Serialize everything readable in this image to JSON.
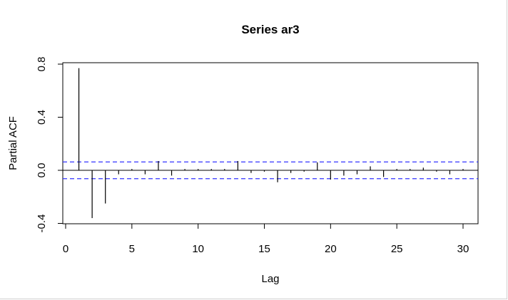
{
  "chart_data": {
    "type": "bar",
    "title": "Series  ar3",
    "xlabel": "Lag",
    "ylabel": "Partial ACF",
    "xlim": [
      0,
      30
    ],
    "ylim": [
      -0.4,
      0.8
    ],
    "xticks": [
      "0",
      "5",
      "10",
      "15",
      "20",
      "25",
      "30"
    ],
    "yticks": [
      "-0.4",
      "0.0",
      "0.4",
      "0.8"
    ],
    "lags": [
      1,
      2,
      3,
      4,
      5,
      6,
      7,
      8,
      9,
      10,
      11,
      12,
      13,
      14,
      15,
      16,
      17,
      18,
      19,
      20,
      21,
      22,
      23,
      24,
      25,
      26,
      27,
      28,
      29,
      30
    ],
    "values": [
      0.77,
      -0.36,
      -0.25,
      -0.03,
      0.01,
      -0.03,
      0.07,
      -0.04,
      0.01,
      0.01,
      0.01,
      0.01,
      0.07,
      -0.02,
      -0.01,
      -0.09,
      -0.02,
      -0.01,
      0.06,
      -0.07,
      -0.04,
      -0.03,
      0.03,
      -0.05,
      0.01,
      0.01,
      0.02,
      -0.01,
      -0.03,
      0.01
    ],
    "confidence_band": 0.063,
    "colors": {
      "bars": "#000000",
      "band": "#3333ff",
      "zero_line": "#000000"
    },
    "grid": false
  }
}
